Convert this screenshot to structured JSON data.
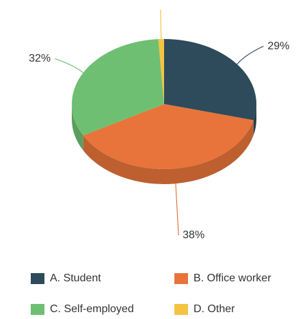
{
  "chart_data": {
    "type": "pie3d",
    "categories": [
      "A. Student",
      "B. Office worker",
      "C. Self-employed",
      "D. Other"
    ],
    "values": [
      29,
      38,
      32,
      1
    ],
    "value_labels": [
      "29%",
      "38%",
      "32%",
      null
    ],
    "colors": [
      "#2e4b5b",
      "#e8743b",
      "#6fbf73",
      "#f5c342"
    ],
    "legend": "bottom"
  }
}
